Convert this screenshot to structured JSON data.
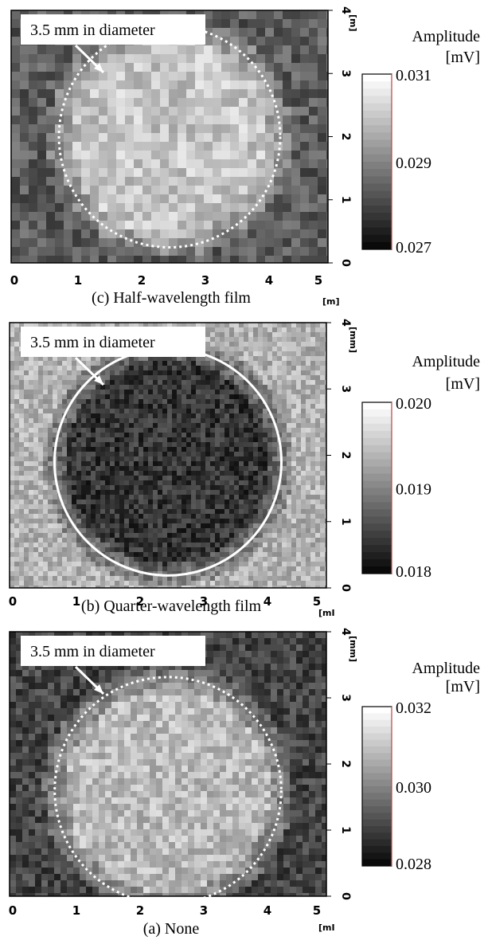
{
  "chart_data": [
    {
      "type": "heatmap",
      "caption": "(c) Half-wavelength film",
      "annotation": "3.5 mm in diameter",
      "x_ticks": [
        "0",
        "1",
        "2",
        "3",
        "4",
        "5"
      ],
      "y_ticks": [
        "0",
        "1",
        "2",
        "3",
        "4"
      ],
      "x_unit": "[m]",
      "y_unit": "[m]",
      "xlim": [
        0,
        5
      ],
      "ylim": [
        0,
        4
      ],
      "colorbar_title": [
        "Amplitude",
        "[mV]"
      ],
      "colorbar_ticks": [
        "0.031",
        "0.029",
        "0.027"
      ],
      "colorbar_range": [
        0.027,
        0.031
      ],
      "circle": {
        "center": [
          2.5,
          2.0
        ],
        "diameter": 3.5,
        "style": "dotted"
      },
      "field": {
        "inside_level": 0.8,
        "outside_level": 0.35,
        "texture": "coarse-pixel"
      }
    },
    {
      "type": "heatmap",
      "caption": "(b) Quarter-wavelength film",
      "annotation": "3.5 mm in diameter",
      "x_ticks": [
        "0",
        "1",
        "2",
        "3",
        "4",
        "5"
      ],
      "y_ticks": [
        "0",
        "1",
        "2",
        "3",
        "4"
      ],
      "x_unit": "[mI",
      "y_unit": "[mm]",
      "xlim": [
        0,
        5
      ],
      "ylim": [
        0,
        4
      ],
      "colorbar_title": [
        "Amplitude",
        "[mV]"
      ],
      "colorbar_ticks": [
        "0.020",
        "0.019",
        "0.018"
      ],
      "colorbar_range": [
        0.018,
        0.02
      ],
      "circle": {
        "center": [
          2.5,
          1.9
        ],
        "diameter": 3.5,
        "style": "solid"
      },
      "field": {
        "inside_level": 0.18,
        "outside_level": 0.72,
        "texture": "fine-speckle"
      }
    },
    {
      "type": "heatmap",
      "caption": "(a) None",
      "annotation": "3.5 mm in diameter",
      "x_ticks": [
        "0",
        "1",
        "2",
        "3",
        "4",
        "5"
      ],
      "y_ticks": [
        "0",
        "1",
        "2",
        "3",
        "4"
      ],
      "x_unit": "[mI",
      "y_unit": "[mm]",
      "xlim": [
        0,
        5
      ],
      "ylim": [
        0,
        4
      ],
      "colorbar_title": [
        "Amplitude",
        "[mV]"
      ],
      "colorbar_ticks": [
        "0.032",
        "0.030",
        "0.028"
      ],
      "colorbar_range": [
        0.028,
        0.032
      ],
      "circle": {
        "center": [
          2.5,
          1.6
        ],
        "diameter": 3.5,
        "style": "dotted"
      },
      "field": {
        "inside_level": 0.75,
        "outside_level": 0.25,
        "texture": "medium-pixel"
      }
    }
  ],
  "colors": {
    "background": "#ffffff",
    "circle": "#ffffff",
    "colorbar_edge": "#e05050",
    "text": "#000000"
  }
}
